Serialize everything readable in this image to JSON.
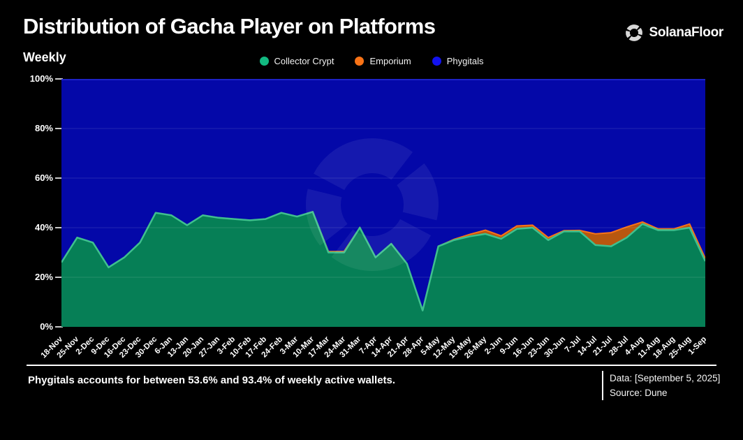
{
  "header": {
    "title": "Distribution of Gacha Player on Platforms",
    "subtitle": "Weekly",
    "brand": "SolanaFloor"
  },
  "legend": {
    "items": [
      {
        "label": "Collector Crypt",
        "color": "#12b981"
      },
      {
        "label": "Emporium",
        "color": "#f97316"
      },
      {
        "label": "Phygitals",
        "color": "#1212ee"
      }
    ]
  },
  "chart_data": {
    "type": "area",
    "stacked": true,
    "title": "Distribution of Gacha Player on Platforms",
    "subtitle": "Weekly",
    "unit": "%",
    "ylim": [
      0,
      100
    ],
    "yticks": [
      "0%",
      "20%",
      "40%",
      "60%",
      "80%",
      "100%"
    ],
    "grid": true,
    "legend_position": "top",
    "x": [
      "18-Nov",
      "25-Nov",
      "2-Dec",
      "9-Dec",
      "16-Dec",
      "23-Dec",
      "30-Dec",
      "6-Jan",
      "13-Jan",
      "20-Jan",
      "27-Jan",
      "3-Feb",
      "10-Feb",
      "17-Feb",
      "24-Feb",
      "3-Mar",
      "10-Mar",
      "17-Mar",
      "24-Mar",
      "31-Mar",
      "7-Apr",
      "14-Apr",
      "21-Apr",
      "28-Apr",
      "5-May",
      "12-May",
      "19-May",
      "26-May",
      "2-Jun",
      "9-Jun",
      "16-Jun",
      "23-Jun",
      "30-Jun",
      "7-Jul",
      "14-Jul",
      "21-Jul",
      "28-Jul",
      "4-Aug",
      "11-Aug",
      "18-Aug",
      "25-Aug",
      "1-Sep"
    ],
    "series": [
      {
        "name": "Collector Crypt",
        "fill": "#067f56",
        "line": "#3fc08e",
        "values": [
          26,
          36,
          34,
          24,
          28,
          34,
          46,
          45,
          41,
          45,
          44,
          43.5,
          43,
          43.5,
          46,
          44.5,
          46.4,
          30,
          30,
          40,
          28,
          33.5,
          25.5,
          6.6,
          32.5,
          35,
          36.5,
          37.5,
          35.5,
          39.5,
          40,
          35,
          38.5,
          38.5,
          33,
          32.5,
          36,
          41.5,
          39,
          39,
          40,
          26.5
        ]
      },
      {
        "name": "Emporium",
        "fill": "#b8570f",
        "line": "#f97316",
        "values": [
          0,
          0,
          0,
          0,
          0,
          0,
          0,
          0,
          0,
          0,
          0,
          0,
          0,
          0,
          0,
          0,
          0,
          0.4,
          0.4,
          0,
          0,
          0,
          0,
          0,
          0,
          0.3,
          0.8,
          1.5,
          1.2,
          1.2,
          1,
          1,
          0.3,
          0.4,
          4.5,
          5.5,
          4.3,
          0.8,
          0.5,
          0.5,
          1.5,
          1.1
        ]
      },
      {
        "name": "Phygitals",
        "fill": "#0408a8",
        "line": "#1d22c8",
        "values": [
          74,
          64,
          66,
          76,
          72,
          66,
          54,
          55,
          59,
          55,
          56,
          56.5,
          57,
          56.5,
          54,
          55.5,
          53.6,
          69.6,
          69.6,
          60,
          72,
          66.5,
          74.5,
          93.4,
          67.5,
          64.7,
          62.7,
          61,
          63.3,
          59.3,
          59,
          64,
          61.2,
          61.1,
          62.5,
          62,
          59.7,
          57.7,
          60.5,
          60.5,
          58.5,
          72.4
        ]
      }
    ],
    "watermark_color": "rgba(255,255,255,0.07)",
    "gridline_color": "rgba(255,255,255,0.10)"
  },
  "footer": {
    "note": "Phygitals accounts for between 53.6% and 93.4% of weekly active wallets.",
    "data_label": "Data: [September 5, 2025]",
    "source_label": "Source: Dune"
  }
}
